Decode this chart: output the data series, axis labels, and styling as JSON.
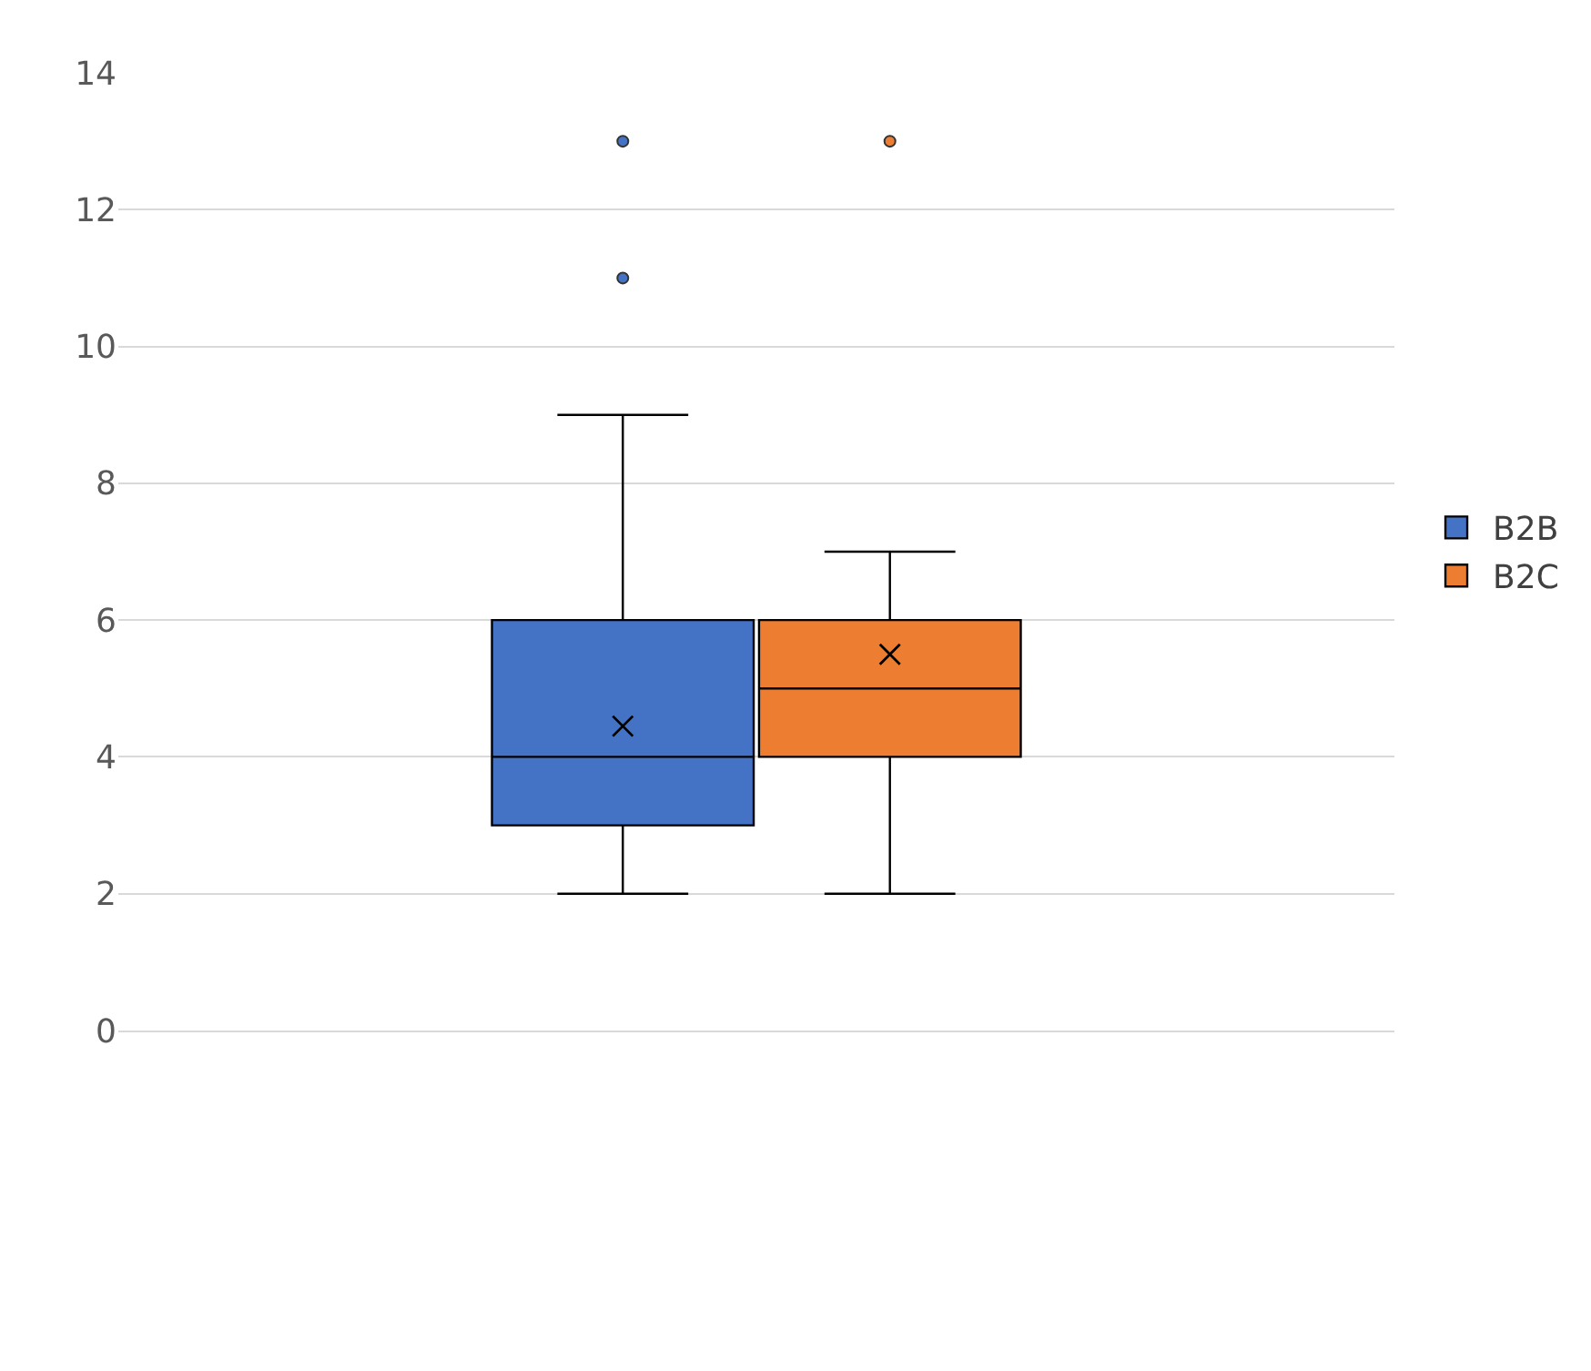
{
  "chart_data": {
    "type": "box",
    "categories": [
      null
    ],
    "series": [
      {
        "name": "B2B",
        "color": "#4472c4",
        "boxes": [
          {
            "low": 2,
            "q1": 3,
            "median": 4,
            "q3": 6,
            "high": 9,
            "mean": 4.45,
            "outliers": [
              11,
              13
            ]
          }
        ]
      },
      {
        "name": "B2C",
        "color": "#ed7d31",
        "boxes": [
          {
            "low": 2,
            "q1": 4,
            "median": 5,
            "q3": 6,
            "high": 7,
            "mean": 5.5,
            "outliers": [
              13
            ]
          }
        ]
      }
    ],
    "ylim": [
      0,
      14
    ],
    "yticks": [
      0,
      2,
      4,
      6,
      8,
      10,
      12,
      14
    ],
    "grid": "y",
    "legend": "right",
    "tick_labels": "y"
  }
}
